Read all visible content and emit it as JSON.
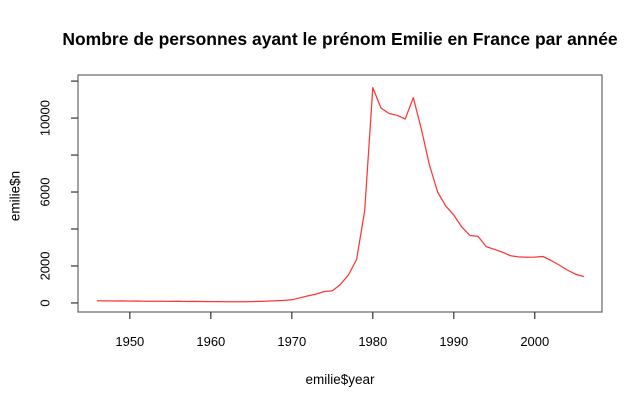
{
  "colors": {
    "background": "#FFFFFF",
    "frame": "#666666",
    "ticks": "#333333",
    "text": "#000000",
    "line": "#FF2020"
  },
  "chart_data": {
    "type": "line",
    "title": "Nombre de personnes ayant le prénom Emilie en France par année",
    "xlabel": "emilie$year",
    "ylabel": "emilie$n",
    "grid": false,
    "legend": null,
    "xlim": [
      1943.6,
      2008.3
    ],
    "ylim": [
      -490,
      12330
    ],
    "x_ticks": {
      "values": [
        1950,
        1960,
        1970,
        1980,
        1990,
        2000
      ],
      "labels": [
        "1950",
        "1960",
        "1970",
        "1980",
        "1990",
        "2000"
      ]
    },
    "y_ticks": {
      "values": [
        0,
        2000,
        4000,
        6000,
        8000,
        10000,
        12000
      ],
      "labels": [
        "0",
        "2000",
        "",
        "6000",
        "",
        "10000",
        ""
      ]
    },
    "series": [
      {
        "name": "emilie",
        "color": "#FF2020",
        "x": [
          1946,
          1947,
          1948,
          1949,
          1950,
          1951,
          1952,
          1953,
          1954,
          1955,
          1956,
          1957,
          1958,
          1959,
          1960,
          1961,
          1962,
          1963,
          1964,
          1965,
          1966,
          1967,
          1968,
          1969,
          1970,
          1971,
          1972,
          1973,
          1974,
          1975,
          1976,
          1977,
          1978,
          1979,
          1980,
          1981,
          1982,
          1983,
          1984,
          1985,
          1986,
          1987,
          1988,
          1989,
          1990,
          1991,
          1992,
          1993,
          1994,
          1995,
          1996,
          1997,
          1998,
          1999,
          2000,
          2001,
          2002,
          2003,
          2004,
          2005,
          2006
        ],
        "y": [
          120,
          110,
          105,
          110,
          100,
          105,
          95,
          90,
          95,
          85,
          90,
          80,
          85,
          80,
          75,
          70,
          65,
          60,
          65,
          75,
          85,
          100,
          120,
          140,
          170,
          280,
          380,
          480,
          620,
          650,
          1000,
          1520,
          2350,
          5000,
          11650,
          10550,
          10250,
          10150,
          9950,
          11100,
          9400,
          7450,
          6000,
          5250,
          4750,
          4100,
          3650,
          3600,
          3050,
          2900,
          2750,
          2550,
          2490,
          2470,
          2480,
          2510,
          2300,
          2050,
          1780,
          1560,
          1430
        ]
      }
    ]
  }
}
